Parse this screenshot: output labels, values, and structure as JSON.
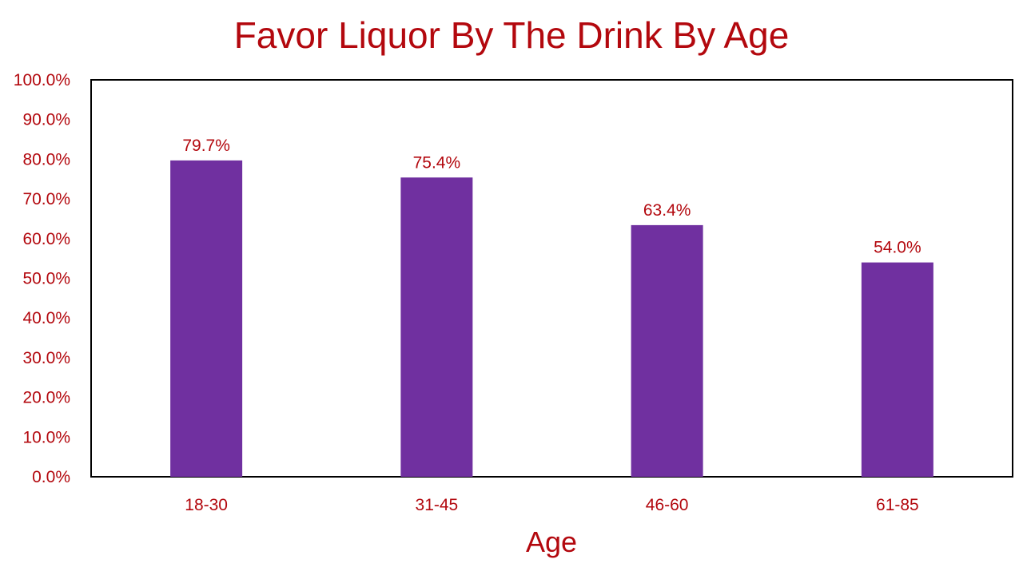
{
  "colors": {
    "text": "#b3080e",
    "bar": "#7030a0",
    "frame": "#000000",
    "data_label": "#b3080e"
  },
  "chart_data": {
    "type": "bar",
    "title": "Favor Liquor By The Drink By Age",
    "xlabel": "Age",
    "ylabel": "",
    "categories": [
      "18-30",
      "31-45",
      "46-60",
      "61-85"
    ],
    "values": [
      79.7,
      75.4,
      63.4,
      54.0
    ],
    "data_labels": [
      "79.7%",
      "75.4%",
      "63.4%",
      "54.0%"
    ],
    "ylim": [
      0,
      100
    ],
    "yticks": [
      0,
      10,
      20,
      30,
      40,
      50,
      60,
      70,
      80,
      90,
      100
    ],
    "ytick_labels": [
      "0.0%",
      "10.0%",
      "20.0%",
      "30.0%",
      "40.0%",
      "50.0%",
      "60.0%",
      "70.0%",
      "80.0%",
      "90.0%",
      "100.0%"
    ],
    "grid": false,
    "legend": "none"
  }
}
